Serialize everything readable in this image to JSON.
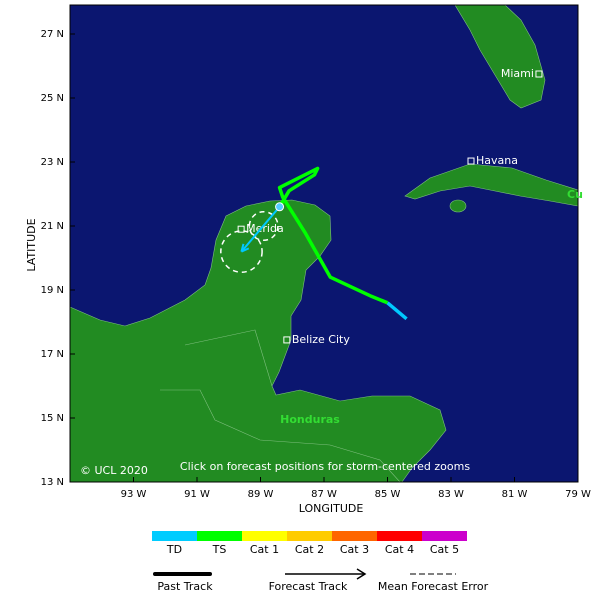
{
  "map": {
    "xlabel": "LONGITUDE",
    "ylabel": "LATITUDE",
    "xlim": [
      -95,
      -79
    ],
    "ylim": [
      13,
      28
    ],
    "xticks": [
      {
        "value": -93,
        "label": "93 W"
      },
      {
        "value": -91,
        "label": "91 W"
      },
      {
        "value": -89,
        "label": "89 W"
      },
      {
        "value": -87,
        "label": "87 W"
      },
      {
        "value": -85,
        "label": "85 W"
      },
      {
        "value": -83,
        "label": "83 W"
      },
      {
        "value": -81,
        "label": "81 W"
      },
      {
        "value": -79,
        "label": "79 W"
      }
    ],
    "yticks": [
      {
        "value": 13,
        "label": "13 N"
      },
      {
        "value": 15,
        "label": "15 N"
      },
      {
        "value": 17,
        "label": "17 N"
      },
      {
        "value": 19,
        "label": "19 N"
      },
      {
        "value": 21,
        "label": "21 N"
      },
      {
        "value": 23,
        "label": "23 N"
      },
      {
        "value": 25,
        "label": "25 N"
      },
      {
        "value": 27,
        "label": "27 N"
      }
    ],
    "cities": [
      {
        "name": "Miami",
        "lon": -80.23,
        "lat": 25.75
      },
      {
        "name": "Havana",
        "lon": -82.37,
        "lat": 23.03
      },
      {
        "name": "Merida",
        "lon": -89.61,
        "lat": 20.9
      },
      {
        "name": "Belize City",
        "lon": -88.17,
        "lat": 17.44
      }
    ],
    "region_labels": [
      "Honduras",
      "Cu"
    ],
    "copyright": "© UCL 2020",
    "note": "Click on forecast positions for storm-centered zooms",
    "past_track": [
      {
        "name": "TD",
        "color": "#00c8ff",
        "lon": [
          -84.4,
          -85.0
        ],
        "lat": [
          18.1,
          18.6
        ]
      },
      {
        "name": "TS",
        "color": "#00ff00",
        "lon": [
          -85.0,
          -85.5,
          -86.8,
          -87.6,
          -88.3,
          -88.4,
          -87.2,
          -87.3,
          -88.1,
          -88.4
        ],
        "lat": [
          18.6,
          18.8,
          19.4,
          20.8,
          21.9,
          22.2,
          22.8,
          22.6,
          22.1,
          21.6
        ]
      }
    ],
    "forecast_track": {
      "color": "#00c8ff",
      "lon": [
        -88.4,
        -89.6
      ],
      "lat": [
        21.6,
        20.2
      ]
    },
    "error_circles": [
      {
        "lon": -88.9,
        "lat": 21.0,
        "radius": 0.45
      },
      {
        "lon": -89.6,
        "lat": 20.2,
        "radius": 0.65
      }
    ],
    "intensity_legend": [
      {
        "name": "TD",
        "color": "#00ccff"
      },
      {
        "name": "TS",
        "color": "#00ff00"
      },
      {
        "name": "Cat 1",
        "color": "#ffff00"
      },
      {
        "name": "Cat 2",
        "color": "#ffcc00"
      },
      {
        "name": "Cat 3",
        "color": "#ff6600"
      },
      {
        "name": "Cat 4",
        "color": "#ff0000"
      },
      {
        "name": "Cat 5",
        "color": "#cc00cc"
      }
    ],
    "line_legend": [
      "Past Track",
      "Forecast Track",
      "Mean Forecast Error"
    ]
  }
}
